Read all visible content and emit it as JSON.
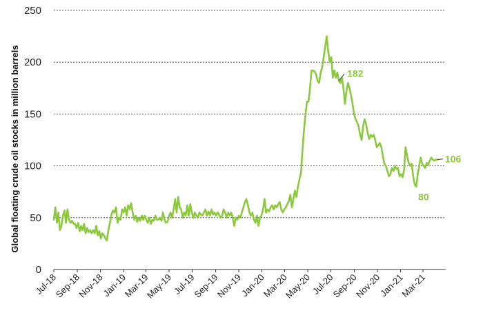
{
  "colors": {
    "line": "#8cc83c",
    "grid": "#333333",
    "text": "#222222"
  },
  "chart_data": {
    "type": "line",
    "title": "",
    "xlabel": "",
    "ylabel": "Global floating crude oil stocks in million barrels",
    "ylim": [
      0,
      250
    ],
    "yticks": [
      0,
      50,
      100,
      150,
      200,
      250
    ],
    "grid": "horizontal dashed",
    "x_tick_labels": [
      "Jul-18",
      "Sep-18",
      "Nov-18",
      "Jan-19",
      "Mar-19",
      "May-19",
      "Jul-19",
      "Sep-19",
      "Nov-19",
      "Jan-20",
      "Mar-20",
      "May-20",
      "Jul-20",
      "Sep-20",
      "Nov-20",
      "Jan-21",
      "Mar-21"
    ],
    "x_start": "2018-07-01",
    "x_end": "2021-04-30",
    "series": [
      {
        "name": "",
        "color": "#8cc83c",
        "points": [
          [
            "2018-07-01",
            48
          ],
          [
            "2018-07-05",
            60
          ],
          [
            "2018-07-09",
            45
          ],
          [
            "2018-07-13",
            55
          ],
          [
            "2018-07-17",
            38
          ],
          [
            "2018-07-21",
            42
          ],
          [
            "2018-07-25",
            52
          ],
          [
            "2018-07-29",
            57
          ],
          [
            "2018-08-02",
            45
          ],
          [
            "2018-08-06",
            58
          ],
          [
            "2018-08-10",
            48
          ],
          [
            "2018-08-14",
            45
          ],
          [
            "2018-08-18",
            47
          ],
          [
            "2018-08-22",
            44
          ],
          [
            "2018-08-26",
            44
          ],
          [
            "2018-08-30",
            40
          ],
          [
            "2018-09-03",
            45
          ],
          [
            "2018-09-07",
            37
          ],
          [
            "2018-09-11",
            42
          ],
          [
            "2018-09-15",
            38
          ],
          [
            "2018-09-19",
            44
          ],
          [
            "2018-09-23",
            35
          ],
          [
            "2018-09-27",
            40
          ],
          [
            "2018-10-01",
            36
          ],
          [
            "2018-10-05",
            38
          ],
          [
            "2018-10-09",
            35
          ],
          [
            "2018-10-13",
            38
          ],
          [
            "2018-10-17",
            35
          ],
          [
            "2018-10-21",
            42
          ],
          [
            "2018-10-25",
            33
          ],
          [
            "2018-10-29",
            37
          ],
          [
            "2018-11-02",
            30
          ],
          [
            "2018-11-06",
            35
          ],
          [
            "2018-11-10",
            33
          ],
          [
            "2018-11-14",
            30
          ],
          [
            "2018-11-18",
            28
          ],
          [
            "2018-11-22",
            38
          ],
          [
            "2018-11-26",
            45
          ],
          [
            "2018-11-30",
            53
          ],
          [
            "2018-12-04",
            57
          ],
          [
            "2018-12-08",
            55
          ],
          [
            "2018-12-12",
            60
          ],
          [
            "2018-12-16",
            45
          ],
          [
            "2018-12-20",
            50
          ],
          [
            "2018-12-24",
            48
          ],
          [
            "2018-12-28",
            58
          ],
          [
            "2019-01-01",
            55
          ],
          [
            "2019-01-05",
            60
          ],
          [
            "2019-01-09",
            52
          ],
          [
            "2019-01-13",
            62
          ],
          [
            "2019-01-17",
            58
          ],
          [
            "2019-01-21",
            64
          ],
          [
            "2019-01-25",
            55
          ],
          [
            "2019-01-29",
            48
          ],
          [
            "2019-02-02",
            52
          ],
          [
            "2019-02-06",
            46
          ],
          [
            "2019-02-10",
            50
          ],
          [
            "2019-02-14",
            47
          ],
          [
            "2019-02-18",
            52
          ],
          [
            "2019-02-22",
            48
          ],
          [
            "2019-02-26",
            52
          ],
          [
            "2019-03-02",
            48
          ],
          [
            "2019-03-06",
            45
          ],
          [
            "2019-03-10",
            50
          ],
          [
            "2019-03-14",
            44
          ],
          [
            "2019-03-18",
            48
          ],
          [
            "2019-03-22",
            47
          ],
          [
            "2019-03-26",
            52
          ],
          [
            "2019-03-30",
            48
          ],
          [
            "2019-04-03",
            48
          ],
          [
            "2019-04-07",
            50
          ],
          [
            "2019-04-11",
            47
          ],
          [
            "2019-04-15",
            55
          ],
          [
            "2019-04-19",
            48
          ],
          [
            "2019-04-23",
            45
          ],
          [
            "2019-04-27",
            46
          ],
          [
            "2019-05-01",
            52
          ],
          [
            "2019-05-05",
            55
          ],
          [
            "2019-05-09",
            50
          ],
          [
            "2019-05-13",
            58
          ],
          [
            "2019-05-17",
            68
          ],
          [
            "2019-05-21",
            55
          ],
          [
            "2019-05-25",
            70
          ],
          [
            "2019-05-29",
            60
          ],
          [
            "2019-06-02",
            58
          ],
          [
            "2019-06-06",
            50
          ],
          [
            "2019-06-10",
            55
          ],
          [
            "2019-06-14",
            52
          ],
          [
            "2019-06-18",
            62
          ],
          [
            "2019-06-22",
            52
          ],
          [
            "2019-06-26",
            63
          ],
          [
            "2019-06-30",
            55
          ],
          [
            "2019-07-04",
            50
          ],
          [
            "2019-07-08",
            55
          ],
          [
            "2019-07-12",
            52
          ],
          [
            "2019-07-16",
            50
          ],
          [
            "2019-07-20",
            55
          ],
          [
            "2019-07-24",
            53
          ],
          [
            "2019-07-28",
            52
          ],
          [
            "2019-08-01",
            55
          ],
          [
            "2019-08-05",
            58
          ],
          [
            "2019-08-09",
            52
          ],
          [
            "2019-08-13",
            56
          ],
          [
            "2019-08-17",
            52
          ],
          [
            "2019-08-21",
            58
          ],
          [
            "2019-08-25",
            53
          ],
          [
            "2019-08-29",
            55
          ],
          [
            "2019-09-02",
            52
          ],
          [
            "2019-09-06",
            55
          ],
          [
            "2019-09-10",
            53
          ],
          [
            "2019-09-14",
            50
          ],
          [
            "2019-09-18",
            52
          ],
          [
            "2019-09-22",
            58
          ],
          [
            "2019-09-26",
            55
          ],
          [
            "2019-09-30",
            50
          ],
          [
            "2019-10-04",
            55
          ],
          [
            "2019-10-08",
            52
          ],
          [
            "2019-10-12",
            55
          ],
          [
            "2019-10-16",
            50
          ],
          [
            "2019-10-20",
            42
          ],
          [
            "2019-10-24",
            50
          ],
          [
            "2019-10-28",
            48
          ],
          [
            "2019-11-01",
            52
          ],
          [
            "2019-11-05",
            50
          ],
          [
            "2019-11-09",
            55
          ],
          [
            "2019-11-13",
            60
          ],
          [
            "2019-11-17",
            65
          ],
          [
            "2019-11-21",
            68
          ],
          [
            "2019-11-25",
            62
          ],
          [
            "2019-11-29",
            55
          ],
          [
            "2019-12-03",
            52
          ],
          [
            "2019-12-07",
            55
          ],
          [
            "2019-12-11",
            48
          ],
          [
            "2019-12-15",
            45
          ],
          [
            "2019-12-19",
            52
          ],
          [
            "2019-12-23",
            42
          ],
          [
            "2019-12-27",
            50
          ],
          [
            "2019-12-31",
            52
          ],
          [
            "2020-01-04",
            58
          ],
          [
            "2020-01-08",
            68
          ],
          [
            "2020-01-12",
            55
          ],
          [
            "2020-01-16",
            58
          ],
          [
            "2020-01-20",
            56
          ],
          [
            "2020-01-24",
            60
          ],
          [
            "2020-01-28",
            62
          ],
          [
            "2020-02-01",
            58
          ],
          [
            "2020-02-05",
            62
          ],
          [
            "2020-02-09",
            60
          ],
          [
            "2020-02-13",
            63
          ],
          [
            "2020-02-17",
            65
          ],
          [
            "2020-02-21",
            58
          ],
          [
            "2020-02-25",
            55
          ],
          [
            "2020-02-29",
            58
          ],
          [
            "2020-03-04",
            60
          ],
          [
            "2020-03-08",
            63
          ],
          [
            "2020-03-12",
            66
          ],
          [
            "2020-03-16",
            72
          ],
          [
            "2020-03-20",
            60
          ],
          [
            "2020-03-24",
            68
          ],
          [
            "2020-03-28",
            76
          ],
          [
            "2020-04-01",
            70
          ],
          [
            "2020-04-05",
            80
          ],
          [
            "2020-04-09",
            87
          ],
          [
            "2020-04-13",
            93
          ],
          [
            "2020-04-17",
            115
          ],
          [
            "2020-04-21",
            135
          ],
          [
            "2020-04-25",
            150
          ],
          [
            "2020-04-29",
            162
          ],
          [
            "2020-05-03",
            162
          ],
          [
            "2020-05-07",
            175
          ],
          [
            "2020-05-11",
            192
          ],
          [
            "2020-05-15",
            192
          ],
          [
            "2020-05-19",
            191
          ],
          [
            "2020-05-23",
            188
          ],
          [
            "2020-05-27",
            182
          ],
          [
            "2020-05-31",
            180
          ],
          [
            "2020-06-04",
            190
          ],
          [
            "2020-06-08",
            195
          ],
          [
            "2020-06-12",
            205
          ],
          [
            "2020-06-16",
            215
          ],
          [
            "2020-06-20",
            225
          ],
          [
            "2020-06-24",
            210
          ],
          [
            "2020-06-28",
            200
          ],
          [
            "2020-07-02",
            205
          ],
          [
            "2020-07-06",
            185
          ],
          [
            "2020-07-10",
            192
          ],
          [
            "2020-07-14",
            185
          ],
          [
            "2020-07-18",
            190
          ],
          [
            "2020-07-22",
            182
          ],
          [
            "2020-07-26",
            180
          ],
          [
            "2020-07-30",
            185
          ],
          [
            "2020-08-03",
            175
          ],
          [
            "2020-08-07",
            160
          ],
          [
            "2020-08-11",
            172
          ],
          [
            "2020-08-15",
            180
          ],
          [
            "2020-08-19",
            175
          ],
          [
            "2020-08-23",
            168
          ],
          [
            "2020-08-27",
            160
          ],
          [
            "2020-08-31",
            150
          ],
          [
            "2020-09-04",
            145
          ],
          [
            "2020-09-08",
            142
          ],
          [
            "2020-09-12",
            138
          ],
          [
            "2020-09-16",
            130
          ],
          [
            "2020-09-20",
            125
          ],
          [
            "2020-09-24",
            138
          ],
          [
            "2020-09-28",
            145
          ],
          [
            "2020-10-02",
            140
          ],
          [
            "2020-10-06",
            132
          ],
          [
            "2020-10-10",
            126
          ],
          [
            "2020-10-14",
            130
          ],
          [
            "2020-10-18",
            128
          ],
          [
            "2020-10-22",
            130
          ],
          [
            "2020-10-26",
            125
          ],
          [
            "2020-10-30",
            118
          ],
          [
            "2020-11-03",
            120
          ],
          [
            "2020-11-07",
            122
          ],
          [
            "2020-11-11",
            118
          ],
          [
            "2020-11-15",
            110
          ],
          [
            "2020-11-19",
            102
          ],
          [
            "2020-11-23",
            100
          ],
          [
            "2020-11-27",
            95
          ],
          [
            "2020-12-01",
            90
          ],
          [
            "2020-12-05",
            92
          ],
          [
            "2020-12-09",
            98
          ],
          [
            "2020-12-13",
            95
          ],
          [
            "2020-12-17",
            100
          ],
          [
            "2020-12-21",
            97
          ],
          [
            "2020-12-25",
            98
          ],
          [
            "2020-12-29",
            90
          ],
          [
            "2021-01-02",
            92
          ],
          [
            "2021-01-06",
            89
          ],
          [
            "2021-01-10",
            96
          ],
          [
            "2021-01-14",
            118
          ],
          [
            "2021-01-18",
            110
          ],
          [
            "2021-01-22",
            103
          ],
          [
            "2021-01-26",
            100
          ],
          [
            "2021-01-30",
            102
          ],
          [
            "2021-02-03",
            90
          ],
          [
            "2021-02-07",
            82
          ],
          [
            "2021-02-11",
            80
          ],
          [
            "2021-02-15",
            92
          ],
          [
            "2021-02-19",
            100
          ],
          [
            "2021-02-23",
            108
          ],
          [
            "2021-02-27",
            102
          ],
          [
            "2021-03-03",
            100
          ],
          [
            "2021-03-07",
            98
          ],
          [
            "2021-03-11",
            103
          ],
          [
            "2021-03-15",
            101
          ],
          [
            "2021-03-19",
            105
          ],
          [
            "2021-03-23",
            108
          ],
          [
            "2021-03-27",
            106
          ],
          [
            "2021-03-31",
            105
          ],
          [
            "2021-04-04",
            106
          ],
          [
            "2021-04-08",
            106
          ]
        ]
      }
    ],
    "annotations": [
      {
        "text": "182",
        "x": "2020-07-22",
        "y": 182
      },
      {
        "text": "106",
        "x": "2021-04-08",
        "y": 106
      },
      {
        "text": "80",
        "x": "2021-02-11",
        "y": 80
      }
    ]
  }
}
